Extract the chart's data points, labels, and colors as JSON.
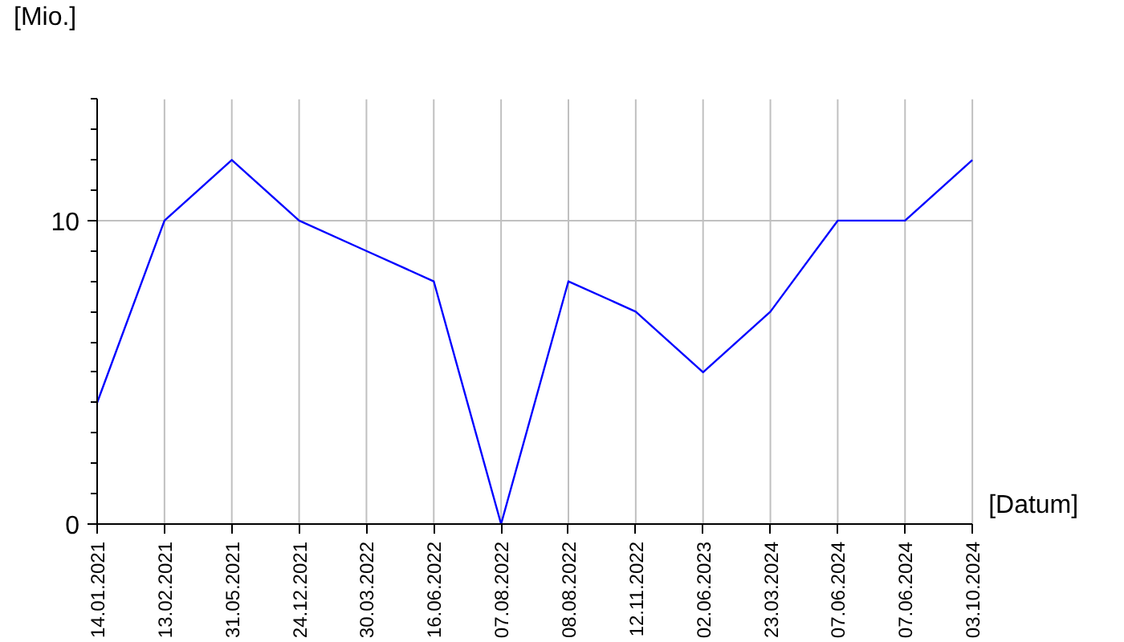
{
  "chart_data": {
    "type": "line",
    "xlabel": "[Datum]",
    "ylabel": "[Mio.]",
    "categories": [
      "14.01.2021",
      "13.02.2021",
      "31.05.2021",
      "24.12.2021",
      "30.03.2022",
      "16.06.2022",
      "07.08.2022",
      "08.08.2022",
      "12.11.2022",
      "02.06.2023",
      "23.03.2024",
      "07.06.2024",
      "07.06.2024",
      "03.10.2024"
    ],
    "series": [
      {
        "color": "#0000ff",
        "values": [
          4,
          10,
          12,
          10,
          9,
          8,
          0,
          8,
          7,
          5,
          7,
          10,
          10,
          12
        ]
      }
    ],
    "ylim": [
      0,
      14
    ],
    "yticks": [
      0,
      10
    ],
    "grid": true,
    "marker": "none",
    "line_style": "solid"
  }
}
